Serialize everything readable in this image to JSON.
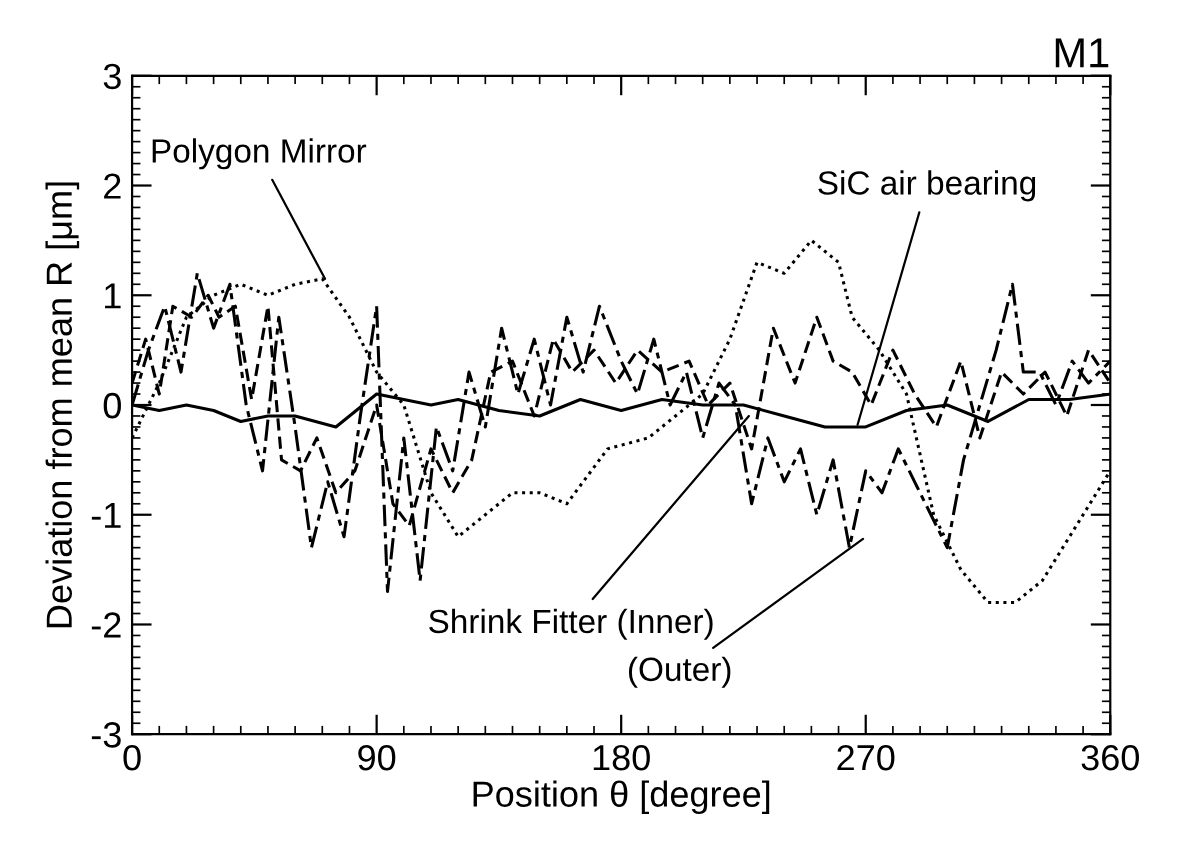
{
  "chart_data": {
    "type": "line",
    "title": "M1",
    "xlabel": "Position θ [degree]",
    "ylabel": "Deviation from mean R [μm]",
    "xlim": [
      0,
      360
    ],
    "xticks": [
      0,
      90,
      180,
      270,
      360
    ],
    "ylim": [
      -3,
      3
    ],
    "yticks": [
      -3,
      -2,
      -1,
      0,
      1,
      2,
      3
    ],
    "grid": false,
    "legend": false,
    "marker": "none",
    "series": [
      {
        "color": "#000000",
        "line_style": "solid",
        "x": [
          0,
          10,
          20,
          30,
          40,
          50,
          60,
          75,
          90,
          100,
          110,
          120,
          135,
          150,
          165,
          180,
          195,
          210,
          225,
          240,
          255,
          270,
          285,
          300,
          315,
          330,
          345,
          360
        ],
        "values": [
          0,
          -0.05,
          0,
          -0.05,
          -0.15,
          -0.1,
          -0.1,
          -0.2,
          0.1,
          0.05,
          0,
          0.05,
          -0.05,
          -0.1,
          0.05,
          -0.05,
          0.05,
          0,
          0,
          -0.1,
          -0.2,
          -0.2,
          -0.05,
          0,
          -0.15,
          0.05,
          0.05,
          0.1
        ]
      },
      {
        "color": "#000000",
        "line_style": "dotted",
        "x": [
          0,
          10,
          20,
          30,
          40,
          50,
          60,
          70,
          80,
          90,
          100,
          110,
          120,
          130,
          140,
          150,
          160,
          175,
          190,
          200,
          210,
          220,
          230,
          240,
          250,
          260,
          265,
          275,
          285,
          295,
          305,
          315,
          325,
          335,
          345,
          360
        ],
        "values": [
          -0.3,
          0.2,
          0.8,
          1.0,
          1.1,
          1.0,
          1.1,
          1.15,
          0.8,
          0.3,
          0,
          -0.8,
          -1.2,
          -1.0,
          -0.8,
          -0.8,
          -0.9,
          -0.4,
          -0.3,
          -0.1,
          0.1,
          0.6,
          1.3,
          1.2,
          1.5,
          1.3,
          0.8,
          0.5,
          0.1,
          -1.0,
          -1.5,
          -1.8,
          -1.8,
          -1.6,
          -1.2,
          -0.6
        ]
      },
      {
        "color": "#000000",
        "line_style": "dashed",
        "x": [
          0,
          5,
          10,
          15,
          22,
          28,
          32,
          38,
          44,
          50,
          55,
          62,
          68,
          75,
          82,
          90,
          96,
          102,
          110,
          118,
          125,
          132,
          140,
          148,
          155,
          162,
          170,
          178,
          186,
          195,
          205,
          212,
          220,
          228,
          236,
          244,
          252,
          258,
          265,
          272,
          280,
          288,
          296,
          305,
          312,
          320,
          328,
          336,
          344,
          352,
          360
        ],
        "values": [
          0.2,
          0.6,
          0.1,
          0.9,
          0.8,
          1.0,
          0.8,
          0.9,
          0.05,
          0.9,
          -0.5,
          -0.6,
          -0.3,
          -0.8,
          -0.6,
          0,
          -0.9,
          -1.1,
          -0.4,
          -0.8,
          -0.5,
          0.3,
          0.4,
          -0.1,
          0.6,
          0.3,
          0.5,
          0.2,
          0.5,
          0.3,
          0.4,
          0,
          0.2,
          -0.4,
          0.7,
          0.2,
          0.8,
          0.4,
          0.3,
          0,
          0.5,
          0.1,
          -0.2,
          0.4,
          -0.3,
          0.3,
          0.1,
          0.3,
          -0.1,
          0.5,
          0.2
        ]
      },
      {
        "color": "#000000",
        "line_style": "dashdot",
        "x": [
          0,
          6,
          12,
          18,
          24,
          30,
          36,
          42,
          48,
          54,
          60,
          66,
          72,
          78,
          84,
          90,
          94,
          100,
          106,
          112,
          118,
          124,
          130,
          136,
          142,
          148,
          154,
          160,
          166,
          172,
          180,
          186,
          192,
          198,
          204,
          210,
          216,
          222,
          228,
          234,
          240,
          246,
          252,
          258,
          264,
          270,
          276,
          282,
          288,
          294,
          300,
          306,
          312,
          318,
          324,
          328,
          334,
          340,
          346,
          352,
          360
        ],
        "values": [
          0,
          0.5,
          0.9,
          0.3,
          1.2,
          0.7,
          1.1,
          0,
          -0.6,
          0.8,
          -0.2,
          -1.3,
          -0.7,
          -1.2,
          -0.1,
          0.9,
          -1.7,
          -0.3,
          -1.6,
          -0.2,
          -0.6,
          0.3,
          -0.2,
          0.7,
          0.1,
          0.6,
          0,
          0.8,
          0.3,
          0.9,
          0.4,
          0.1,
          0.6,
          0,
          0.3,
          -0.3,
          0.2,
          0,
          -0.9,
          -0.3,
          -0.7,
          -0.4,
          -1.0,
          -0.5,
          -1.3,
          -0.6,
          -0.8,
          -0.4,
          -0.7,
          -1.0,
          -1.3,
          -0.5,
          0,
          0.5,
          1.1,
          0.3,
          0.3,
          0,
          0.4,
          0.2,
          0.4
        ]
      }
    ],
    "annotations": [
      {
        "text": "Polygon Mirror",
        "x": 71,
        "y": 1.15
      },
      {
        "text": "SiC air bearing",
        "x": 267,
        "y": -0.18
      },
      {
        "text": "Shrink Fitter (Inner)",
        "x": 227,
        "y": -0.1
      },
      {
        "text": "(Outer)",
        "x": 269,
        "y": -1.22
      }
    ]
  }
}
